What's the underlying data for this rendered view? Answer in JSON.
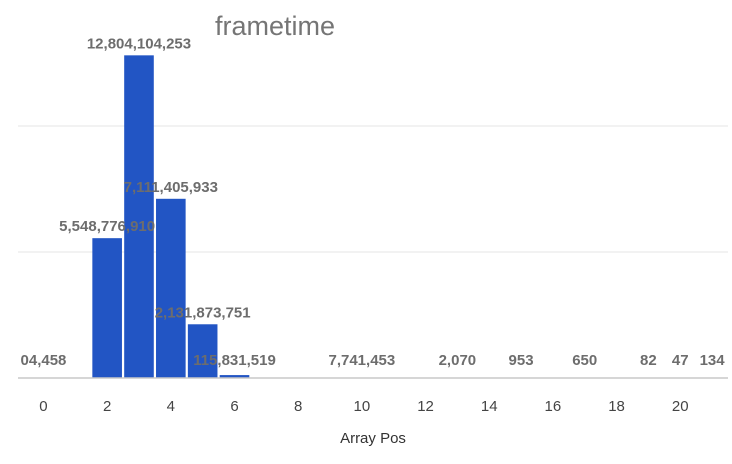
{
  "chart_data": {
    "type": "bar",
    "title": "frametime",
    "xlabel": "Array Pos",
    "ylabel": "",
    "accent_color": "#2255c4",
    "grid": true,
    "legend": "none",
    "xlim": [
      -0.8,
      21.5
    ],
    "ylim": [
      0,
      15000000000
    ],
    "x_ticks": [
      0,
      2,
      4,
      6,
      8,
      10,
      12,
      14,
      16,
      18,
      20
    ],
    "x": [
      0,
      1,
      2,
      3,
      4,
      5,
      6,
      7,
      8,
      9,
      10,
      11,
      12,
      13,
      14,
      15,
      16,
      17,
      18,
      19,
      20,
      21
    ],
    "values": [
      4458,
      0,
      5548776910,
      12804104253,
      7111405933,
      2131873751,
      115831519,
      0,
      0,
      0,
      7741453,
      0,
      0,
      2070,
      0,
      953,
      0,
      650,
      0,
      82,
      47,
      134
    ],
    "data_labels": [
      "04,458",
      "",
      "5,548,776,910",
      "12,804,104,253",
      "7,111,405,933",
      "2,131,873,751",
      "115,831,519",
      "",
      "",
      "",
      "7,741,453",
      "",
      "",
      "2,070",
      "",
      "953",
      "",
      "650",
      "",
      "82",
      "47",
      "134"
    ]
  }
}
